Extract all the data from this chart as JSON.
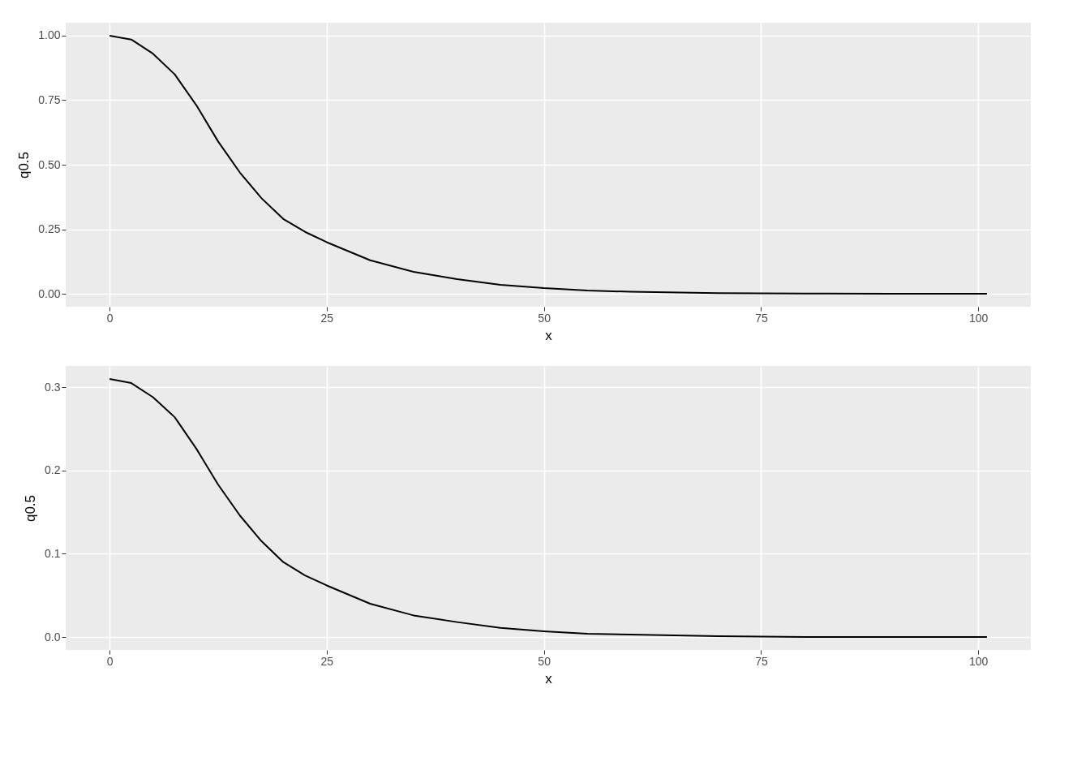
{
  "chart_data": [
    {
      "type": "line",
      "xlabel": "x",
      "ylabel": "q0.5",
      "x": [
        0,
        2.5,
        5,
        7.5,
        10,
        12.5,
        15,
        17.5,
        20,
        22.5,
        25,
        30,
        35,
        40,
        45,
        50,
        55,
        60,
        70,
        80,
        90,
        101
      ],
      "series": [
        {
          "color": "#000000",
          "values": [
            1.0,
            0.985,
            0.93,
            0.85,
            0.73,
            0.59,
            0.47,
            0.37,
            0.29,
            0.24,
            0.2,
            0.13,
            0.085,
            0.057,
            0.035,
            0.022,
            0.013,
            0.008,
            0.003,
            0.001,
            0.0,
            0.0
          ]
        }
      ],
      "xlim": [
        -5.05,
        106.05
      ],
      "xticks": [
        0,
        25,
        50,
        75,
        100
      ],
      "ylim": [
        -0.05,
        1.05
      ],
      "yticks": [
        {
          "value": 0,
          "label": "0.00"
        },
        0.25,
        {
          "value": 0.5,
          "label": "0.50"
        },
        0.75,
        {
          "value": 1,
          "label": "1.00"
        }
      ],
      "grid": true,
      "line_style": "solid"
    },
    {
      "type": "line",
      "xlabel": "x",
      "ylabel": "q0.5",
      "x": [
        0,
        2.5,
        5,
        7.5,
        10,
        12.5,
        15,
        17.5,
        20,
        22.5,
        25,
        30,
        35,
        40,
        45,
        50,
        55,
        60,
        70,
        80,
        90,
        101
      ],
      "series": [
        {
          "color": "#000000",
          "values": [
            0.31,
            0.305,
            0.288,
            0.264,
            0.226,
            0.183,
            0.146,
            0.115,
            0.09,
            0.074,
            0.062,
            0.04,
            0.026,
            0.018,
            0.011,
            0.007,
            0.004,
            0.003,
            0.001,
            0.0,
            0.0,
            0.0
          ]
        }
      ],
      "xlim": [
        -5.05,
        106.05
      ],
      "xticks": [
        0,
        25,
        50,
        75,
        100
      ],
      "ylim": [
        -0.0155,
        0.3255
      ],
      "yticks": [
        {
          "value": 0,
          "label": "0.0"
        },
        0.1,
        0.2,
        0.3
      ],
      "grid": true,
      "line_style": "solid"
    }
  ]
}
